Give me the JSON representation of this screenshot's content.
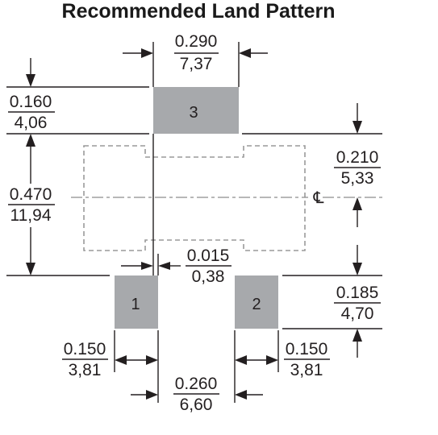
{
  "title": "Recommended Land Pattern",
  "pads": {
    "pad3": "3",
    "pad1": "1",
    "pad2": "2"
  },
  "centerline_symbol": "℄",
  "dimensions": {
    "pad3_width": {
      "inch": "0.290",
      "mm": "7,37"
    },
    "top_offset": {
      "inch": "0.160",
      "mm": "4,06"
    },
    "overall_height": {
      "inch": "0.470",
      "mm": "11,94"
    },
    "right_offset": {
      "inch": "0.210",
      "mm": "5,33"
    },
    "gap": {
      "inch": "0.015",
      "mm": "0,38"
    },
    "bottom_offset": {
      "inch": "0.185",
      "mm": "4,70"
    },
    "pad1_width": {
      "inch": "0.150",
      "mm": "3,81"
    },
    "pad2_width": {
      "inch": "0.150",
      "mm": "3,81"
    },
    "pad_spacing": {
      "inch": "0.260",
      "mm": "6,60"
    }
  },
  "colors": {
    "pad": "#a7a9ac",
    "line": "#231f20",
    "outline": "#9a9a9a"
  }
}
